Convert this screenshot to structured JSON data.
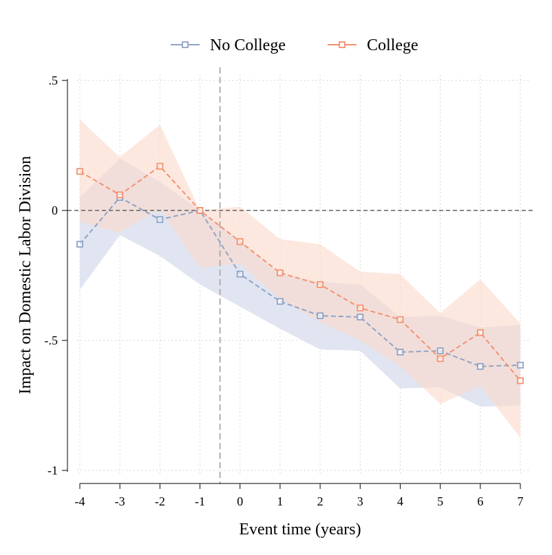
{
  "chart_data": {
    "type": "line",
    "title": "",
    "xlabel": "Event time (years)",
    "ylabel": "Impact on Domestic Labor Division",
    "x": [
      -4,
      -3,
      -2,
      -1,
      0,
      1,
      2,
      3,
      4,
      5,
      6,
      7
    ],
    "xlim": [
      -4,
      7
    ],
    "ylim": [
      -1,
      0.5
    ],
    "x_ticks": [
      -4,
      -3,
      -2,
      -1,
      0,
      1,
      2,
      3,
      4,
      5,
      6,
      7
    ],
    "x_tick_labels": [
      "-4",
      "-3",
      "-2",
      "-1",
      "0",
      "1",
      "2",
      "3",
      "4",
      "5",
      "6",
      "7"
    ],
    "y_ticks": [
      -1,
      -0.5,
      0,
      0.5
    ],
    "y_tick_labels": [
      "-1",
      "-.5",
      "0",
      ".5"
    ],
    "grid": true,
    "reference_lines": {
      "horizontal_y": 0,
      "vertical_x": -0.5
    },
    "legend_position": "top-center",
    "series": [
      {
        "name": "No College",
        "color": "#8fa3c8",
        "band_color": "#dbe1ee",
        "values": [
          -0.13,
          0.05,
          -0.035,
          0.0,
          -0.245,
          -0.35,
          -0.405,
          -0.41,
          -0.545,
          -0.54,
          -0.6,
          -0.595
        ],
        "ci_lower": [
          -0.305,
          -0.095,
          -0.175,
          -0.285,
          -0.37,
          -0.455,
          -0.535,
          -0.54,
          -0.685,
          -0.68,
          -0.755,
          -0.75
        ],
        "ci_upper": [
          0.05,
          0.2,
          0.11,
          0.0,
          -0.12,
          -0.245,
          -0.275,
          -0.285,
          -0.41,
          -0.405,
          -0.45,
          -0.44
        ]
      },
      {
        "name": "College",
        "color": "#f4916e",
        "band_color": "#fcd9cc",
        "values": [
          0.15,
          0.06,
          0.17,
          0.0,
          -0.12,
          -0.24,
          -0.285,
          -0.375,
          -0.42,
          -0.57,
          -0.47,
          -0.655
        ],
        "ci_lower": [
          -0.045,
          -0.085,
          0.005,
          -0.22,
          -0.205,
          -0.34,
          -0.43,
          -0.5,
          -0.6,
          -0.745,
          -0.675,
          -0.875
        ],
        "ci_upper": [
          0.35,
          0.205,
          0.33,
          0.0,
          0.015,
          -0.11,
          -0.13,
          -0.235,
          -0.245,
          -0.395,
          -0.265,
          -0.435
        ]
      }
    ]
  }
}
